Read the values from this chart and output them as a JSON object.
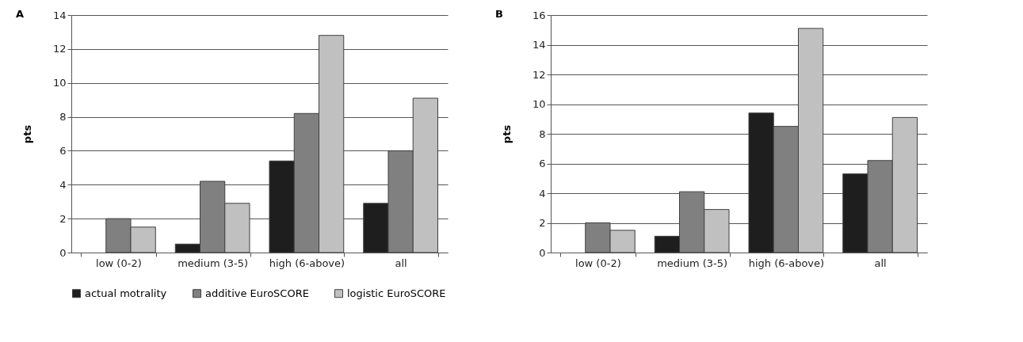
{
  "chart_data": [
    {
      "type": "bar",
      "title": "A",
      "ylabel": "pts",
      "categories": [
        "low (0-2)",
        "medium (3-5)",
        "high (6-above)",
        "all"
      ],
      "ylim": [
        0,
        14
      ],
      "yticks": [
        0,
        2,
        4,
        6,
        8,
        10,
        12,
        14
      ],
      "grid": "y",
      "legend": "bottom",
      "series": [
        {
          "name": "actual motrality",
          "color": "#1e1e1e",
          "values": [
            null,
            0.5,
            5.4,
            2.9
          ]
        },
        {
          "name": "additive EuroSCORE",
          "color": "#808080",
          "values": [
            2.0,
            4.2,
            8.2,
            6.0
          ]
        },
        {
          "name": "logistic EuroSCORE",
          "color": "#c0c0c0",
          "values": [
            1.5,
            2.9,
            12.8,
            9.1
          ]
        }
      ]
    },
    {
      "type": "bar",
      "title": "B",
      "ylabel": "pts",
      "categories": [
        "low (0-2)",
        "medium (3-5)",
        "high (6-above)",
        "all"
      ],
      "ylim": [
        0,
        16
      ],
      "yticks": [
        0,
        2,
        4,
        6,
        8,
        10,
        12,
        14,
        16
      ],
      "grid": "y",
      "legend": "bottom",
      "series": [
        {
          "name": "actual motrality",
          "color": "#1e1e1e",
          "values": [
            null,
            1.1,
            9.4,
            5.3
          ]
        },
        {
          "name": "additive EuroSCORE",
          "color": "#808080",
          "values": [
            2.0,
            4.1,
            8.5,
            6.2
          ]
        },
        {
          "name": "logistic EuroSCORE",
          "color": "#c0c0c0",
          "values": [
            1.5,
            2.9,
            15.1,
            9.1
          ]
        }
      ]
    }
  ]
}
